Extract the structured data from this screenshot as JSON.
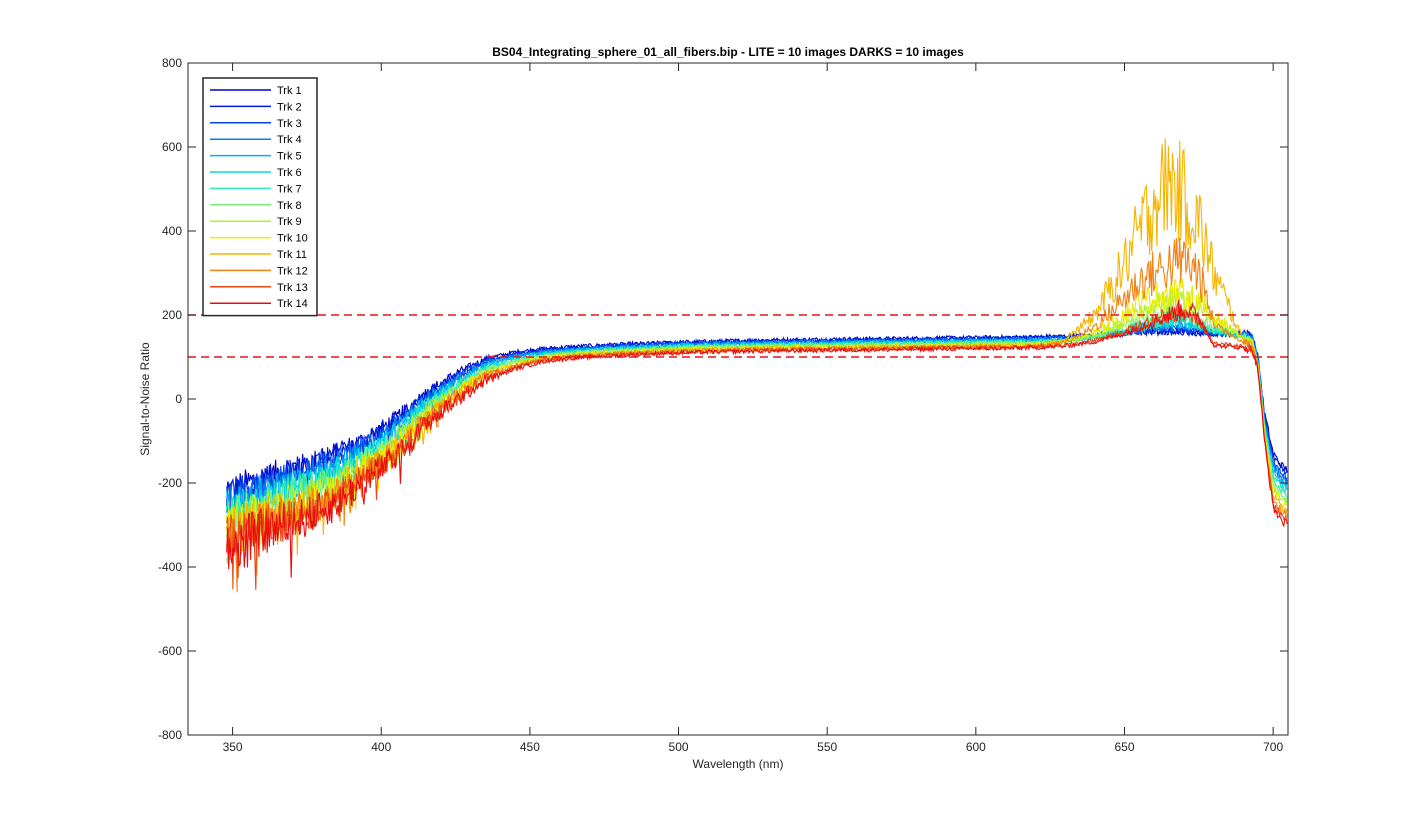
{
  "chart_data": {
    "type": "line",
    "title": "BS04_Integrating_sphere_01_all_fibers.bip - LITE =  10 images  DARKS = 10 images",
    "xlabel": "Wavelength (nm)",
    "ylabel": "Signal-to-Noise Ratio",
    "xlim": [
      335,
      705
    ],
    "ylim": [
      -800,
      800
    ],
    "x_ticks": [
      350,
      400,
      450,
      500,
      550,
      600,
      650,
      700
    ],
    "y_ticks": [
      -800,
      -600,
      -400,
      -200,
      0,
      200,
      400,
      600,
      800
    ],
    "x_tick_labels": [
      "350",
      "400",
      "450",
      "500",
      "550",
      "600",
      "650",
      "700"
    ],
    "y_tick_labels": [
      "-800",
      "-600",
      "-400",
      "-200",
      "0",
      "200",
      "400",
      "600",
      "800"
    ],
    "grid": false,
    "legend_position": "top-left",
    "reference_lines": [
      {
        "y": 200,
        "color": "#e8141a",
        "style": "dashed"
      },
      {
        "y": 100,
        "color": "#e8141a",
        "style": "dashed"
      }
    ],
    "x": [
      348,
      355,
      365,
      375,
      385,
      395,
      405,
      415,
      425,
      435,
      445,
      455,
      465,
      480,
      500,
      525,
      550,
      575,
      600,
      620,
      630,
      640,
      650,
      655,
      660,
      665,
      670,
      675,
      680,
      690,
      693,
      695,
      697,
      700,
      703,
      705
    ],
    "series": [
      {
        "name": "Trk 1",
        "color": "#0000c8",
        "noise": 38,
        "values": [
          -220,
          -200,
          -175,
          -155,
          -125,
          -95,
          -45,
          15,
          60,
          95,
          112,
          120,
          125,
          130,
          135,
          140,
          142,
          144,
          146,
          148,
          150,
          152,
          157,
          160,
          162,
          162,
          160,
          158,
          156,
          158,
          150,
          95,
          -30,
          -130,
          -160,
          -170
        ]
      },
      {
        "name": "Trk 2",
        "color": "#0018dc",
        "noise": 40,
        "values": [
          -230,
          -210,
          -185,
          -160,
          -130,
          -100,
          -50,
          10,
          55,
          92,
          108,
          118,
          122,
          128,
          134,
          138,
          140,
          142,
          144,
          146,
          148,
          150,
          155,
          158,
          160,
          160,
          158,
          156,
          154,
          156,
          148,
          92,
          -35,
          -140,
          -170,
          -180
        ]
      },
      {
        "name": "Trk 3",
        "color": "#0046e6",
        "noise": 42,
        "values": [
          -240,
          -220,
          -195,
          -170,
          -140,
          -108,
          -58,
          5,
          50,
          88,
          105,
          115,
          120,
          126,
          132,
          136,
          138,
          140,
          142,
          144,
          146,
          148,
          156,
          162,
          166,
          168,
          166,
          162,
          158,
          155,
          147,
          90,
          -40,
          -150,
          -180,
          -190
        ]
      },
      {
        "name": "Trk 4",
        "color": "#0080f0",
        "noise": 44,
        "values": [
          -250,
          -230,
          -205,
          -180,
          -150,
          -115,
          -65,
          0,
          45,
          84,
          102,
          112,
          118,
          124,
          130,
          134,
          136,
          138,
          140,
          142,
          144,
          148,
          158,
          166,
          172,
          176,
          174,
          168,
          160,
          154,
          146,
          88,
          -45,
          -160,
          -190,
          -200
        ]
      },
      {
        "name": "Trk 5",
        "color": "#00b0f0",
        "noise": 46,
        "values": [
          -260,
          -240,
          -215,
          -190,
          -160,
          -122,
          -72,
          -6,
          40,
          80,
          99,
          110,
          116,
          122,
          128,
          132,
          134,
          136,
          138,
          140,
          142,
          148,
          162,
          172,
          180,
          186,
          184,
          176,
          164,
          150,
          142,
          85,
          -50,
          -170,
          -200,
          -210
        ]
      },
      {
        "name": "Trk 6",
        "color": "#00dcdc",
        "noise": 48,
        "values": [
          -270,
          -250,
          -225,
          -200,
          -170,
          -130,
          -80,
          -12,
          35,
          76,
          96,
          108,
          114,
          120,
          126,
          130,
          132,
          134,
          136,
          138,
          140,
          146,
          160,
          170,
          178,
          184,
          182,
          174,
          162,
          148,
          140,
          82,
          -55,
          -180,
          -210,
          -220
        ]
      },
      {
        "name": "Trk 7",
        "color": "#30ecb4",
        "noise": 50,
        "values": [
          -280,
          -260,
          -235,
          -210,
          -180,
          -138,
          -88,
          -18,
          30,
          72,
          93,
          105,
          112,
          118,
          124,
          128,
          130,
          132,
          134,
          136,
          138,
          146,
          164,
          176,
          186,
          194,
          192,
          182,
          166,
          148,
          138,
          80,
          -60,
          -190,
          -220,
          -230
        ]
      },
      {
        "name": "Trk 8",
        "color": "#78f078",
        "noise": 52,
        "values": [
          -290,
          -270,
          -245,
          -220,
          -190,
          -145,
          -95,
          -24,
          25,
          68,
          90,
          102,
          110,
          116,
          122,
          126,
          128,
          130,
          132,
          134,
          138,
          150,
          172,
          186,
          198,
          206,
          204,
          192,
          172,
          148,
          136,
          78,
          -65,
          -200,
          -230,
          -240
        ]
      },
      {
        "name": "Trk 9",
        "color": "#b4f032",
        "noise": 54,
        "values": [
          -300,
          -280,
          -255,
          -230,
          -200,
          -152,
          -102,
          -30,
          20,
          64,
          87,
          100,
          108,
          114,
          120,
          124,
          126,
          128,
          130,
          132,
          136,
          152,
          184,
          204,
          220,
          232,
          234,
          220,
          190,
          148,
          134,
          76,
          -70,
          -210,
          -240,
          -250
        ]
      },
      {
        "name": "Trk 10",
        "color": "#ecec00",
        "noise": 56,
        "values": [
          -310,
          -290,
          -265,
          -240,
          -210,
          -160,
          -110,
          -36,
          15,
          60,
          84,
          98,
          106,
          112,
          118,
          122,
          124,
          126,
          128,
          130,
          136,
          160,
          204,
          228,
          244,
          252,
          248,
          232,
          196,
          146,
          132,
          74,
          -75,
          -220,
          -250,
          -260
        ]
      },
      {
        "name": "Trk 11",
        "color": "#f5b400",
        "noise": 60,
        "values": [
          -320,
          -300,
          -275,
          -250,
          -220,
          -168,
          -118,
          -42,
          10,
          56,
          81,
          96,
          104,
          110,
          116,
          120,
          122,
          124,
          126,
          128,
          140,
          200,
          320,
          400,
          470,
          520,
          480,
          420,
          300,
          140,
          130,
          72,
          -80,
          -230,
          -260,
          -270
        ]
      },
      {
        "name": "Trk 12",
        "color": "#f08214",
        "noise": 60,
        "values": [
          -330,
          -310,
          -285,
          -260,
          -230,
          -175,
          -125,
          -48,
          5,
          52,
          78,
          94,
          102,
          108,
          114,
          118,
          120,
          122,
          124,
          126,
          134,
          172,
          240,
          280,
          300,
          320,
          330,
          300,
          180,
          136,
          128,
          70,
          -85,
          -240,
          -270,
          -280
        ]
      },
      {
        "name": "Trk 13",
        "color": "#eb4614",
        "noise": 62,
        "values": [
          -340,
          -320,
          -295,
          -270,
          -240,
          -182,
          -132,
          -54,
          0,
          48,
          75,
          92,
          100,
          106,
          112,
          116,
          118,
          120,
          122,
          124,
          128,
          140,
          160,
          175,
          188,
          200,
          208,
          190,
          132,
          125,
          120,
          68,
          -90,
          -250,
          -280,
          -290
        ]
      },
      {
        "name": "Trk 14",
        "color": "#e80c0c",
        "noise": 64,
        "values": [
          -350,
          -330,
          -305,
          -280,
          -250,
          -190,
          -140,
          -60,
          -5,
          44,
          72,
          90,
          98,
          104,
          110,
          114,
          116,
          118,
          120,
          122,
          126,
          136,
          156,
          172,
          186,
          200,
          216,
          196,
          128,
          122,
          118,
          66,
          -95,
          -260,
          -290,
          -300
        ]
      }
    ]
  }
}
